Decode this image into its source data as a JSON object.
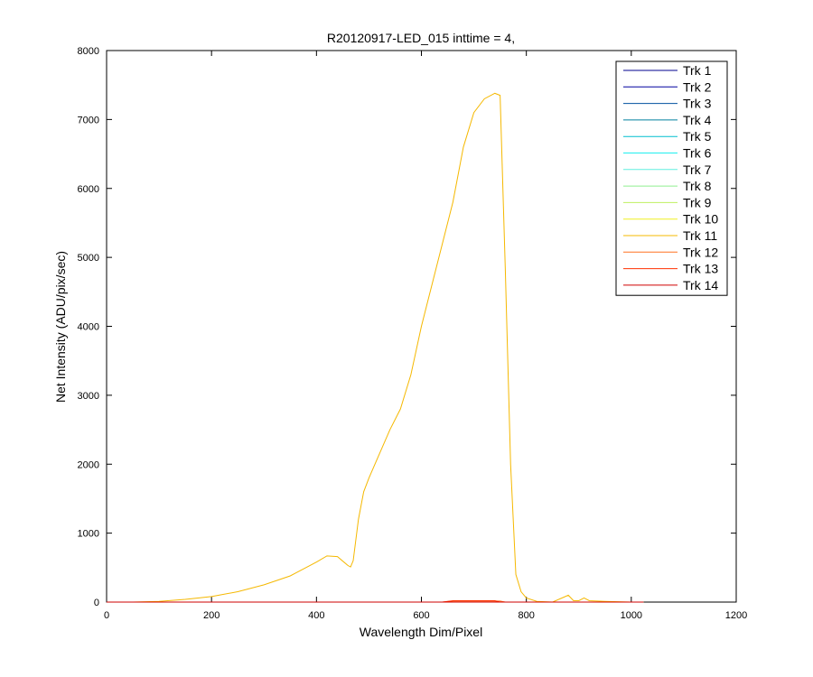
{
  "chart_data": {
    "type": "line",
    "title": "R20120917-LED_015 inttime = 4,",
    "x_label": "Wavelength Dim/Pixel",
    "y_label": "Net Intensity (ADU/pix/sec)",
    "xlim": [
      0,
      1200
    ],
    "xticks": [
      0,
      200,
      400,
      600,
      800,
      1000,
      1200
    ],
    "ylim": [
      0,
      8000
    ],
    "yticks": [
      0,
      1000,
      2000,
      3000,
      4000,
      5000,
      6000,
      7000,
      8000
    ],
    "legend": "upper right",
    "x": [
      0,
      50,
      100,
      150,
      200,
      250,
      300,
      350,
      400,
      420,
      440,
      460,
      465,
      470,
      480,
      490,
      500,
      520,
      540,
      560,
      580,
      600,
      620,
      640,
      660,
      680,
      700,
      720,
      740,
      750,
      760,
      770,
      780,
      790,
      800,
      820,
      850,
      880,
      890,
      900,
      910,
      920,
      950,
      1000,
      1023
    ],
    "series": [
      {
        "name": "Trk 1",
        "color": "#00008f",
        "values": [
          0,
          0,
          0,
          0,
          0,
          0,
          0,
          0,
          0,
          0,
          0,
          0,
          0,
          0,
          0,
          0,
          0,
          0,
          0,
          0,
          0,
          0,
          0,
          0,
          0,
          0,
          0,
          0,
          0,
          0,
          0,
          0,
          0,
          0,
          0,
          0,
          0,
          0,
          0,
          0,
          0,
          0,
          0,
          0,
          0
        ]
      },
      {
        "name": "Trk 2",
        "color": "#00009f",
        "values": [
          0,
          0,
          0,
          0,
          0,
          0,
          0,
          0,
          0,
          0,
          0,
          0,
          0,
          0,
          0,
          0,
          0,
          0,
          0,
          0,
          0,
          0,
          0,
          0,
          0,
          0,
          0,
          0,
          0,
          0,
          0,
          0,
          0,
          0,
          0,
          0,
          0,
          0,
          0,
          0,
          0,
          0,
          0,
          0,
          0
        ]
      },
      {
        "name": "Trk 3",
        "color": "#00509f",
        "values": [
          0,
          0,
          0,
          0,
          0,
          0,
          0,
          0,
          0,
          0,
          0,
          0,
          0,
          0,
          0,
          0,
          0,
          0,
          0,
          0,
          0,
          0,
          0,
          0,
          0,
          0,
          0,
          0,
          0,
          0,
          0,
          0,
          0,
          0,
          0,
          0,
          0,
          0,
          0,
          0,
          0,
          0,
          0,
          0,
          0
        ]
      },
      {
        "name": "Trk 4",
        "color": "#00809f",
        "values": [
          0,
          0,
          0,
          0,
          0,
          0,
          0,
          0,
          0,
          0,
          0,
          0,
          0,
          0,
          0,
          0,
          0,
          0,
          0,
          0,
          0,
          0,
          0,
          0,
          0,
          0,
          0,
          0,
          0,
          0,
          0,
          0,
          0,
          0,
          0,
          0,
          0,
          0,
          0,
          0,
          0,
          0,
          0,
          0,
          0
        ]
      },
      {
        "name": "Trk 5",
        "color": "#00bfcf",
        "values": [
          0,
          0,
          0,
          0,
          0,
          0,
          0,
          0,
          0,
          0,
          0,
          0,
          0,
          0,
          0,
          0,
          0,
          0,
          0,
          0,
          0,
          0,
          0,
          0,
          0,
          0,
          0,
          0,
          0,
          0,
          0,
          0,
          0,
          0,
          0,
          0,
          0,
          0,
          0,
          0,
          0,
          0,
          0,
          0,
          0
        ]
      },
      {
        "name": "Trk 6",
        "color": "#20efef",
        "values": [
          0,
          0,
          0,
          0,
          0,
          0,
          0,
          0,
          0,
          0,
          0,
          0,
          0,
          0,
          0,
          0,
          0,
          0,
          0,
          0,
          0,
          0,
          0,
          0,
          0,
          0,
          0,
          0,
          0,
          0,
          0,
          0,
          0,
          0,
          0,
          0,
          0,
          0,
          0,
          0,
          0,
          0,
          0,
          0,
          0
        ]
      },
      {
        "name": "Trk 7",
        "color": "#60efdf",
        "values": [
          0,
          0,
          0,
          0,
          0,
          0,
          0,
          0,
          0,
          0,
          0,
          0,
          0,
          0,
          0,
          0,
          0,
          0,
          0,
          0,
          0,
          0,
          0,
          0,
          0,
          0,
          0,
          0,
          0,
          0,
          0,
          0,
          0,
          0,
          0,
          0,
          0,
          0,
          0,
          0,
          0,
          0,
          0,
          0,
          0
        ]
      },
      {
        "name": "Trk 8",
        "color": "#8fef8f",
        "values": [
          0,
          0,
          0,
          0,
          0,
          0,
          0,
          0,
          0,
          0,
          0,
          0,
          0,
          0,
          0,
          0,
          0,
          0,
          0,
          0,
          0,
          0,
          0,
          0,
          0,
          0,
          0,
          0,
          0,
          0,
          0,
          0,
          0,
          0,
          0,
          0,
          0,
          0,
          0,
          0,
          0,
          0,
          0,
          0,
          0
        ]
      },
      {
        "name": "Trk 9",
        "color": "#bfef5f",
        "values": [
          0,
          0,
          0,
          0,
          0,
          0,
          0,
          0,
          0,
          0,
          0,
          0,
          0,
          0,
          0,
          0,
          0,
          0,
          0,
          0,
          0,
          0,
          0,
          0,
          0,
          0,
          0,
          0,
          0,
          0,
          0,
          0,
          0,
          0,
          0,
          0,
          0,
          0,
          0,
          0,
          0,
          0,
          0,
          0,
          0
        ]
      },
      {
        "name": "Trk 10",
        "color": "#efef20",
        "values": [
          0,
          0,
          0,
          0,
          0,
          0,
          0,
          0,
          0,
          0,
          0,
          0,
          0,
          0,
          0,
          0,
          0,
          0,
          0,
          0,
          0,
          0,
          0,
          0,
          0,
          0,
          0,
          0,
          0,
          0,
          0,
          0,
          0,
          0,
          0,
          0,
          0,
          0,
          0,
          0,
          0,
          0,
          0,
          0,
          0
        ]
      },
      {
        "name": "Trk 11",
        "color": "#f5b800",
        "values": [
          0,
          0,
          10,
          40,
          80,
          150,
          250,
          380,
          580,
          670,
          660,
          530,
          510,
          600,
          1200,
          1600,
          1800,
          2150,
          2500,
          2800,
          3300,
          4000,
          4600,
          5200,
          5800,
          6600,
          7100,
          7300,
          7380,
          7350,
          4800,
          2000,
          400,
          150,
          60,
          10,
          0,
          100,
          20,
          20,
          60,
          20,
          10,
          0,
          0
        ]
      },
      {
        "name": "Trk 12",
        "color": "#ff7020",
        "values": [
          0,
          0,
          0,
          0,
          0,
          0,
          0,
          0,
          0,
          0,
          0,
          0,
          0,
          0,
          0,
          0,
          0,
          0,
          0,
          0,
          0,
          0,
          0,
          0,
          15,
          15,
          15,
          15,
          15,
          15,
          0,
          0,
          0,
          0,
          0,
          0,
          0,
          0,
          0,
          0,
          0,
          0,
          0,
          0,
          0
        ]
      },
      {
        "name": "Trk 13",
        "color": "#ff3000",
        "values": [
          0,
          0,
          0,
          0,
          0,
          0,
          0,
          0,
          0,
          0,
          0,
          0,
          0,
          0,
          0,
          0,
          0,
          0,
          0,
          0,
          0,
          0,
          0,
          0,
          20,
          20,
          20,
          20,
          20,
          0,
          0,
          0,
          0,
          0,
          0,
          0,
          0,
          0,
          0,
          0,
          0,
          0,
          0,
          0,
          0
        ]
      },
      {
        "name": "Trk 14",
        "color": "#cf0000",
        "values": [
          0,
          0,
          0,
          0,
          0,
          0,
          0,
          0,
          0,
          0,
          0,
          0,
          0,
          0,
          0,
          0,
          0,
          0,
          0,
          0,
          0,
          0,
          0,
          0,
          0,
          0,
          0,
          0,
          0,
          0,
          0,
          0,
          0,
          0,
          0,
          0,
          0,
          0,
          0,
          0,
          0,
          0,
          0,
          0,
          0
        ]
      }
    ]
  }
}
